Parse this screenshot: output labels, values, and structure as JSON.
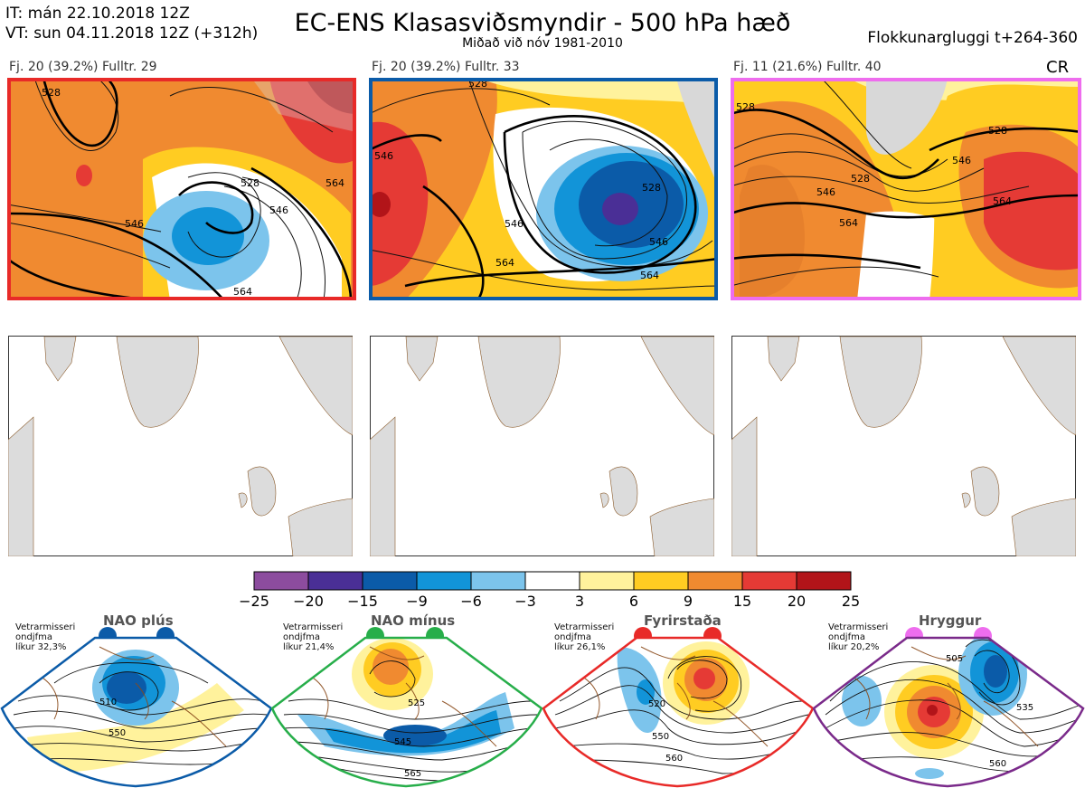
{
  "header": {
    "it": "IT: mán 22.10.2018 12Z",
    "vt": "VT: sun 04.11.2018 12Z  (+312h)",
    "title": "EC-ENS Klasasviðsmyndir - 500 hPa hæð",
    "subtitle": "Miðað við nóv 1981-2010",
    "window": "Flokkunargluggi t+264-360",
    "cr": "CR"
  },
  "clusters": [
    {
      "label": "Fj. 20 (39.2%)   Fulltr. 29",
      "border": "#e82a28",
      "contours": [
        "528",
        "546",
        "546",
        "528",
        "564",
        "564"
      ]
    },
    {
      "label": "Fj. 20 (39.2%)   Fulltr. 33",
      "border": "#0b5ba8",
      "contours": [
        "528",
        "546",
        "528",
        "546",
        "546",
        "564",
        "564"
      ]
    },
    {
      "label": "Fj. 11 (21.6%)   Fulltr. 40",
      "border": "#ee6dee",
      "contours": [
        "528",
        "528",
        "546",
        "546",
        "528",
        "564",
        "564"
      ]
    }
  ],
  "colorbar": {
    "colors": [
      "#8c4c9e",
      "#4a2f96",
      "#0b5ba8",
      "#1294d8",
      "#7cc4ec",
      "#ffffff",
      "#fff29c",
      "#ffcc22",
      "#f08a30",
      "#e53a35",
      "#b21419"
    ],
    "ticks": [
      "−25",
      "−20",
      "−15",
      "−9",
      "−6",
      "−3",
      "3",
      "6",
      "9",
      "15",
      "20",
      "25"
    ]
  },
  "regimes": [
    {
      "name": "NAO plús",
      "info": [
        "Vetrarmisseri",
        "ondjfma",
        "líkur 32,3%"
      ],
      "dot": "#0b5ba8",
      "border": "#0b5ba8",
      "labels": [
        "510",
        "550"
      ]
    },
    {
      "name": "NAO mínus",
      "info": [
        "Vetrarmisseri",
        "ondjfma",
        "líkur 21,4%"
      ],
      "dot": "#27ae4a",
      "border": "#27ae4a",
      "labels": [
        "525",
        "545",
        "565"
      ]
    },
    {
      "name": "Fyrirstaða",
      "info": [
        "Vetrarmisseri",
        "ondjfma",
        "líkur 26,1%"
      ],
      "dot": "#e82a28",
      "border": "#e82a28",
      "labels": [
        "520",
        "550",
        "560"
      ]
    },
    {
      "name": "Hryggur",
      "info": [
        "Vetrarmisseri",
        "ondjfma",
        "líkur 20,2%"
      ],
      "dot": "#ee6dee",
      "border": "#7a2a8a",
      "labels": [
        "505",
        "535",
        "560"
      ]
    }
  ]
}
